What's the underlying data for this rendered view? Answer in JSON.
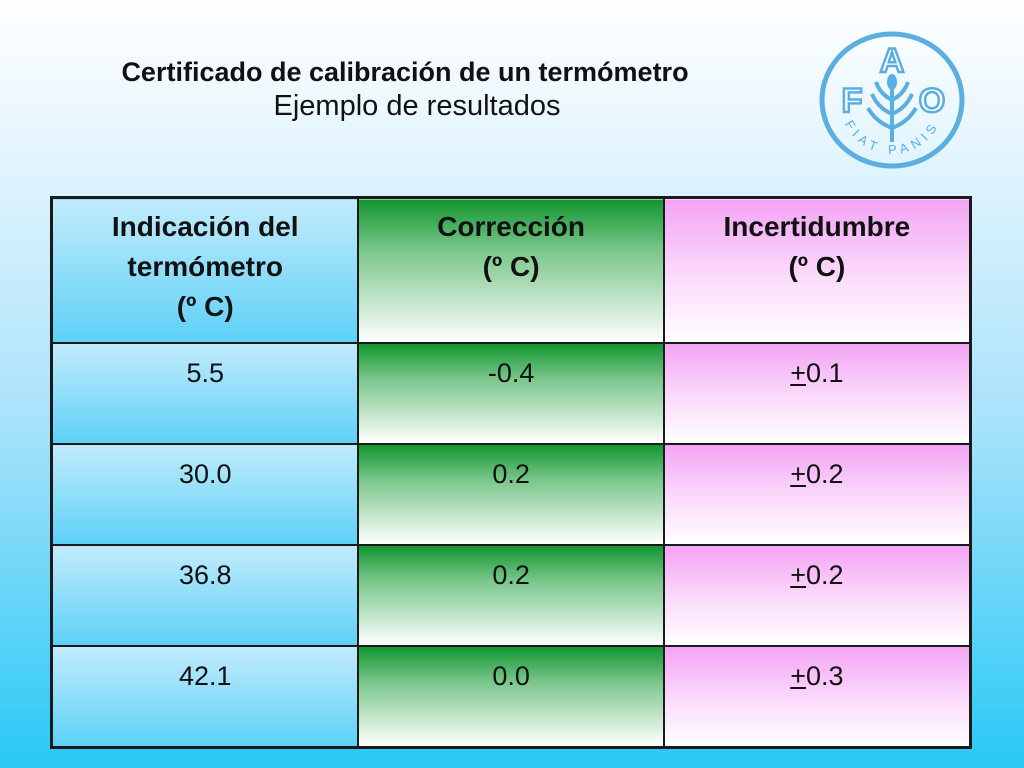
{
  "slide": {
    "title": "Certificado de calibración de un termómetro",
    "subtitle": "Ejemplo de resultados"
  },
  "logo": {
    "icon": "fao-logo-icon",
    "letters": [
      "F",
      "A",
      "O"
    ],
    "motto": "FIAT PANIS",
    "color": "#5aaee0"
  },
  "table": {
    "headers": [
      {
        "label": "Indicación del termómetro",
        "unit": "(º C)"
      },
      {
        "label": "Corrección",
        "unit": "(º C)"
      },
      {
        "label": "Incertidumbre",
        "unit": "(º C)"
      }
    ],
    "rows": [
      {
        "indicacion": "5.5",
        "correccion": "-0.4",
        "incertidumbre_sign": "+",
        "incertidumbre_value": "0.1"
      },
      {
        "indicacion": "30.0",
        "correccion": "0.2",
        "incertidumbre_sign": "+",
        "incertidumbre_value": "0.2"
      },
      {
        "indicacion": "36.8",
        "correccion": "0.2",
        "incertidumbre_sign": "+",
        "incertidumbre_value": "0.2"
      },
      {
        "indicacion": "42.1",
        "correccion": "0.0",
        "incertidumbre_sign": "+",
        "incertidumbre_value": "0.3"
      }
    ]
  }
}
